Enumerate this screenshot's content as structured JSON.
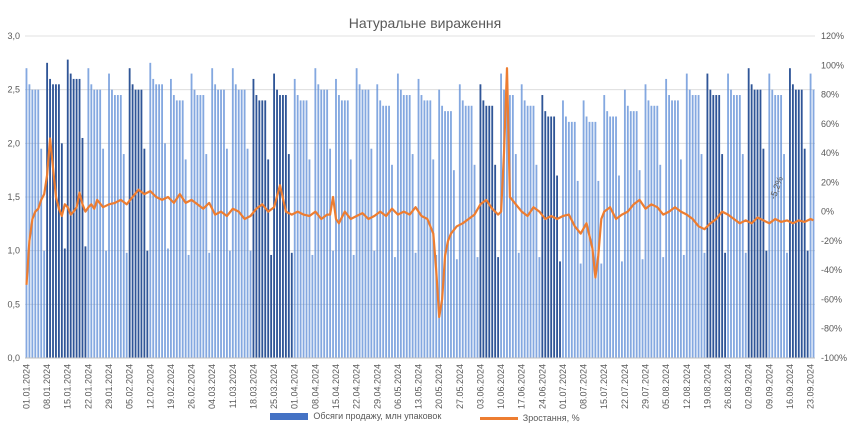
{
  "chart_data": {
    "type": "bar",
    "title": "Натуральне вираження",
    "start_date": "01.01.2024",
    "days": 268,
    "x_tick_labels": [
      "01.01.2024",
      "08.01.2024",
      "15.01.2024",
      "22.01.2024",
      "29.01.2024",
      "05.02.2024",
      "12.02.2024",
      "19.02.2024",
      "26.02.2024",
      "04.03.2024",
      "11.03.2024",
      "18.03.2024",
      "25.03.2024",
      "01.04.2024",
      "08.04.2024",
      "15.04.2024",
      "22.04.2024",
      "29.04.2024",
      "06.05.2024",
      "13.05.2024",
      "20.05.2024",
      "27.05.2024",
      "03.06.2024",
      "10.06.2024",
      "17.06.2024",
      "24.06.2024",
      "01.07.2024",
      "08.07.2024",
      "15.07.2024",
      "22.07.2024",
      "29.07.2024",
      "05.08.2024",
      "12.08.2024",
      "19.08.2024",
      "26.08.2024",
      "02.09.2024",
      "09.09.2024",
      "16.09.2024",
      "23.09.2024"
    ],
    "y_left": {
      "ticks": [
        "0,0",
        "0,5",
        "1,0",
        "1,5",
        "2,0",
        "2,5",
        "3,0"
      ],
      "min": 0,
      "max": 3.0
    },
    "y_right": {
      "ticks": [
        "-100%",
        "-80%",
        "-60%",
        "-40%",
        "-20%",
        "0%",
        "20%",
        "40%",
        "60%",
        "80%",
        "100%",
        "120%"
      ],
      "min": -100,
      "max": 120
    },
    "weekly_pattern_mln": [
      2.65,
      2.5,
      2.45,
      2.45,
      2.45,
      1.9,
      0.98
    ],
    "weekly_offsets_mln": [
      0.05,
      0.1,
      0.15,
      0.05,
      0.0,
      0.05,
      0.1,
      -0.05,
      0.0,
      0.05,
      0.05,
      -0.05,
      0.0,
      -0.05,
      0.05,
      -0.05,
      0.05,
      -0.1,
      0.0,
      -0.05,
      -0.15,
      -0.1,
      -0.1,
      0.0,
      -0.1,
      -0.2,
      -0.25,
      -0.25,
      -0.2,
      -0.15,
      -0.1,
      -0.05,
      0.0,
      0.0,
      0.0,
      0.05,
      0.0,
      0.05,
      0.0
    ],
    "growth_points_pct": [
      [
        0,
        -50
      ],
      [
        1,
        -20
      ],
      [
        2,
        -5
      ],
      [
        3,
        0
      ],
      [
        4,
        2
      ],
      [
        5,
        8
      ],
      [
        6,
        12
      ],
      [
        7,
        25
      ],
      [
        8,
        50
      ],
      [
        9,
        30
      ],
      [
        10,
        10
      ],
      [
        11,
        2
      ],
      [
        12,
        -3
      ],
      [
        13,
        5
      ],
      [
        14,
        3
      ],
      [
        15,
        -2
      ],
      [
        16,
        0
      ],
      [
        17,
        3
      ],
      [
        18,
        13
      ],
      [
        19,
        5
      ],
      [
        20,
        0
      ],
      [
        21,
        3
      ],
      [
        22,
        5
      ],
      [
        23,
        2
      ],
      [
        24,
        8
      ],
      [
        26,
        3
      ],
      [
        28,
        5
      ],
      [
        30,
        6
      ],
      [
        32,
        8
      ],
      [
        34,
        5
      ],
      [
        36,
        10
      ],
      [
        38,
        15
      ],
      [
        40,
        12
      ],
      [
        42,
        14
      ],
      [
        44,
        10
      ],
      [
        46,
        8
      ],
      [
        48,
        10
      ],
      [
        50,
        6
      ],
      [
        52,
        12
      ],
      [
        54,
        6
      ],
      [
        56,
        8
      ],
      [
        58,
        5
      ],
      [
        60,
        2
      ],
      [
        62,
        6
      ],
      [
        64,
        -2
      ],
      [
        66,
        0
      ],
      [
        68,
        -3
      ],
      [
        70,
        2
      ],
      [
        72,
        0
      ],
      [
        74,
        -5
      ],
      [
        76,
        -3
      ],
      [
        78,
        2
      ],
      [
        80,
        5
      ],
      [
        82,
        0
      ],
      [
        84,
        3
      ],
      [
        86,
        18
      ],
      [
        88,
        0
      ],
      [
        90,
        -2
      ],
      [
        92,
        0
      ],
      [
        94,
        -2
      ],
      [
        96,
        -3
      ],
      [
        98,
        0
      ],
      [
        100,
        -5
      ],
      [
        102,
        -2
      ],
      [
        103,
        -2
      ],
      [
        104,
        10
      ],
      [
        105,
        -5
      ],
      [
        106,
        -8
      ],
      [
        108,
        0
      ],
      [
        110,
        -5
      ],
      [
        112,
        -3
      ],
      [
        114,
        -1
      ],
      [
        116,
        -5
      ],
      [
        118,
        -3
      ],
      [
        120,
        0
      ],
      [
        122,
        -3
      ],
      [
        124,
        2
      ],
      [
        126,
        -2
      ],
      [
        128,
        0
      ],
      [
        130,
        -2
      ],
      [
        132,
        3
      ],
      [
        134,
        -3
      ],
      [
        136,
        -5
      ],
      [
        138,
        -15
      ],
      [
        139,
        -40
      ],
      [
        140,
        -72
      ],
      [
        141,
        -60
      ],
      [
        142,
        -30
      ],
      [
        143,
        -20
      ],
      [
        144,
        -15
      ],
      [
        146,
        -10
      ],
      [
        148,
        -8
      ],
      [
        150,
        -5
      ],
      [
        152,
        -2
      ],
      [
        154,
        5
      ],
      [
        156,
        8
      ],
      [
        158,
        2
      ],
      [
        160,
        -2
      ],
      [
        161,
        0
      ],
      [
        162,
        40
      ],
      [
        163,
        98
      ],
      [
        164,
        10
      ],
      [
        166,
        5
      ],
      [
        168,
        0
      ],
      [
        170,
        -3
      ],
      [
        172,
        3
      ],
      [
        174,
        0
      ],
      [
        176,
        -5
      ],
      [
        178,
        -3
      ],
      [
        180,
        -5
      ],
      [
        182,
        -3
      ],
      [
        184,
        -2
      ],
      [
        186,
        -10
      ],
      [
        188,
        -15
      ],
      [
        190,
        -8
      ],
      [
        192,
        -25
      ],
      [
        193,
        -45
      ],
      [
        194,
        -30
      ],
      [
        195,
        -5
      ],
      [
        196,
        0
      ],
      [
        198,
        3
      ],
      [
        200,
        -5
      ],
      [
        202,
        -2
      ],
      [
        204,
        0
      ],
      [
        206,
        5
      ],
      [
        208,
        8
      ],
      [
        210,
        2
      ],
      [
        212,
        5
      ],
      [
        214,
        3
      ],
      [
        216,
        -2
      ],
      [
        218,
        0
      ],
      [
        220,
        3
      ],
      [
        222,
        0
      ],
      [
        224,
        -2
      ],
      [
        226,
        -5
      ],
      [
        228,
        -10
      ],
      [
        230,
        -12
      ],
      [
        232,
        -8
      ],
      [
        234,
        -5
      ],
      [
        236,
        0
      ],
      [
        238,
        -2
      ],
      [
        240,
        -5
      ],
      [
        242,
        -8
      ],
      [
        244,
        -6
      ],
      [
        246,
        -8
      ],
      [
        248,
        -4
      ],
      [
        250,
        -6
      ],
      [
        252,
        -8
      ],
      [
        254,
        -5
      ],
      [
        256,
        -7
      ],
      [
        258,
        -6
      ],
      [
        260,
        -8
      ],
      [
        262,
        -6
      ],
      [
        264,
        -7
      ],
      [
        266,
        -5
      ],
      [
        267,
        -6
      ]
    ],
    "annotation": "-5,2%",
    "legend": [
      {
        "label": "Обсяги продажу, млн упаковок",
        "color": "#4472C4"
      },
      {
        "label": "Зростання, %",
        "color": "#ED7D31"
      }
    ],
    "grid": true
  }
}
